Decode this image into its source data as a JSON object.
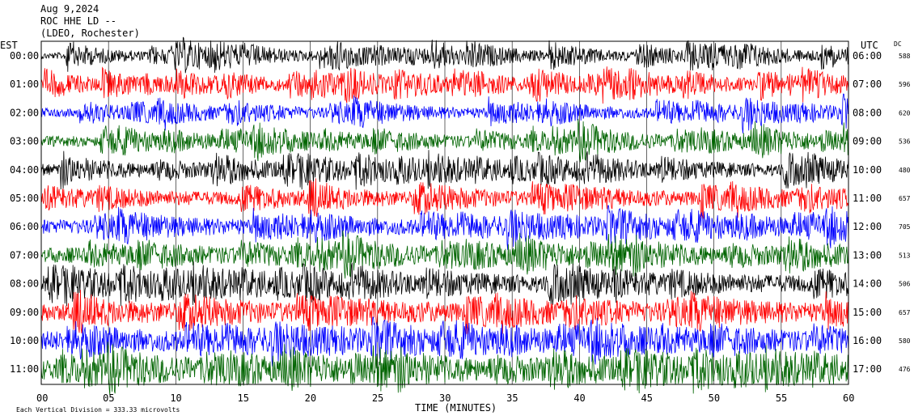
{
  "header": {
    "date": "Aug 9,2024",
    "station": "ROC HHE LD --",
    "network": "(LDEO, Rochester)"
  },
  "labels": {
    "left_timezone": "EST",
    "right_timezone": "UTC",
    "dc": "DC",
    "x_axis": "TIME (MINUTES)",
    "footer": "Each Vertical Division =  333.33 microvolts"
  },
  "chart_data": {
    "type": "line",
    "title": "",
    "xlabel": "TIME (MINUTES)",
    "xlim": [
      0,
      60
    ],
    "x_ticks": [
      "00",
      "05",
      "10",
      "15",
      "20",
      "25",
      "30",
      "35",
      "40",
      "45",
      "50",
      "55",
      "60"
    ],
    "grid": "vertical lines every 5 minutes",
    "series_colors": [
      "#000000",
      "#ff0000",
      "#0000ff",
      "#006400"
    ],
    "rows": [
      {
        "est": "00:00",
        "utc": "06:00",
        "dc": "588",
        "color": "#000000"
      },
      {
        "est": "01:00",
        "utc": "07:00",
        "dc": "596",
        "color": "#ff0000"
      },
      {
        "est": "02:00",
        "utc": "08:00",
        "dc": "620",
        "color": "#0000ff"
      },
      {
        "est": "03:00",
        "utc": "09:00",
        "dc": "536",
        "color": "#006400"
      },
      {
        "est": "04:00",
        "utc": "10:00",
        "dc": "480",
        "color": "#000000"
      },
      {
        "est": "05:00",
        "utc": "11:00",
        "dc": "657",
        "color": "#ff0000"
      },
      {
        "est": "06:00",
        "utc": "12:00",
        "dc": "705",
        "color": "#0000ff"
      },
      {
        "est": "07:00",
        "utc": "13:00",
        "dc": "513",
        "color": "#006400"
      },
      {
        "est": "08:00",
        "utc": "14:00",
        "dc": "506",
        "color": "#000000"
      },
      {
        "est": "09:00",
        "utc": "15:00",
        "dc": "657",
        "color": "#ff0000"
      },
      {
        "est": "10:00",
        "utc": "16:00",
        "dc": "580",
        "color": "#0000ff"
      },
      {
        "est": "11:00",
        "utc": "17:00",
        "dc": "476",
        "color": "#006400"
      }
    ]
  }
}
